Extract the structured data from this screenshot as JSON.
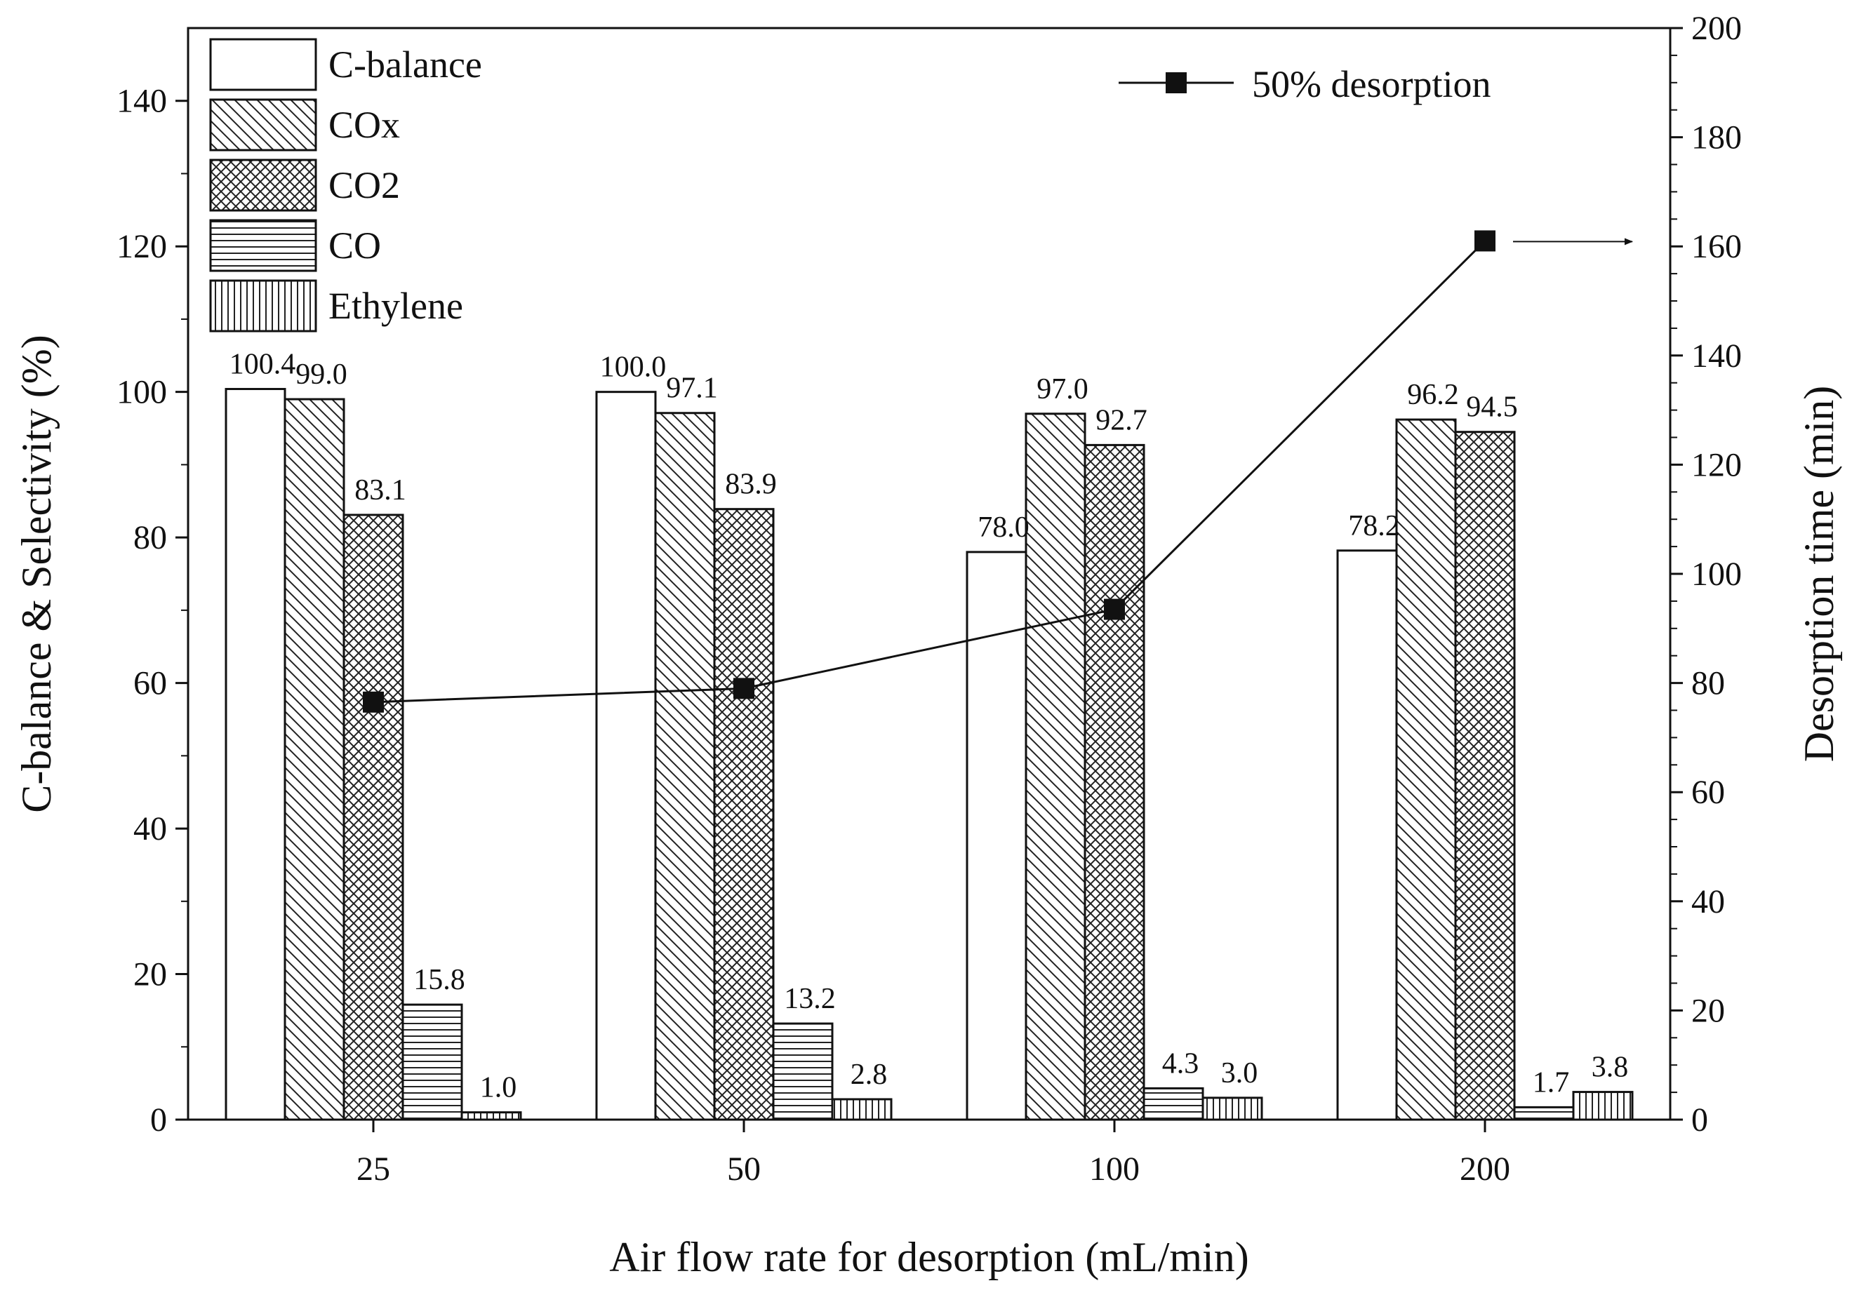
{
  "chart_data": {
    "type": "bar",
    "title": "",
    "xlabel": "Air flow rate for desorption (mL/min)",
    "ylabel": "C-balance & Selectivity (%)",
    "y2label": "Desorption time (min)",
    "categories": [
      "25",
      "50",
      "100",
      "200"
    ],
    "ylim": [
      0,
      150
    ],
    "y_ticks": [
      "0",
      "20",
      "40",
      "60",
      "80",
      "100",
      "120",
      "140"
    ],
    "y2lim": [
      0,
      200
    ],
    "y2_ticks": [
      "0",
      "20",
      "40",
      "60",
      "80",
      "100",
      "120",
      "140",
      "160",
      "180",
      "200"
    ],
    "series": [
      {
        "name": "C-balance",
        "values": [
          100.4,
          100.0,
          78.0,
          78.2
        ],
        "labels": [
          "100.4",
          "100.0",
          "78.0",
          "78.2"
        ],
        "pattern": "none"
      },
      {
        "name": "COx",
        "values": [
          99.0,
          97.1,
          97.0,
          96.2
        ],
        "labels": [
          "99.0",
          "97.1",
          "97.0",
          "96.2"
        ],
        "pattern": "diagonal"
      },
      {
        "name": "CO2",
        "values": [
          83.1,
          83.9,
          92.7,
          94.5
        ],
        "labels": [
          "83.1",
          "83.9",
          "92.7",
          "94.5"
        ],
        "pattern": "crosshatch"
      },
      {
        "name": "CO",
        "values": [
          15.8,
          13.2,
          4.3,
          1.7
        ],
        "labels": [
          "15.8",
          "13.2",
          "4.3",
          "1.7"
        ],
        "pattern": "horizontal"
      },
      {
        "name": "Ethylene",
        "values": [
          1.0,
          2.8,
          3.0,
          3.8
        ],
        "labels": [
          "1.0",
          "2.8",
          "3.0",
          "3.8"
        ],
        "pattern": "vertical"
      }
    ],
    "line_series": {
      "name": "50% desorption",
      "axis": "right",
      "values": [
        76.5,
        79,
        93.5,
        161
      ]
    },
    "legend_position": "top-left",
    "line_legend_position": "top-right"
  }
}
